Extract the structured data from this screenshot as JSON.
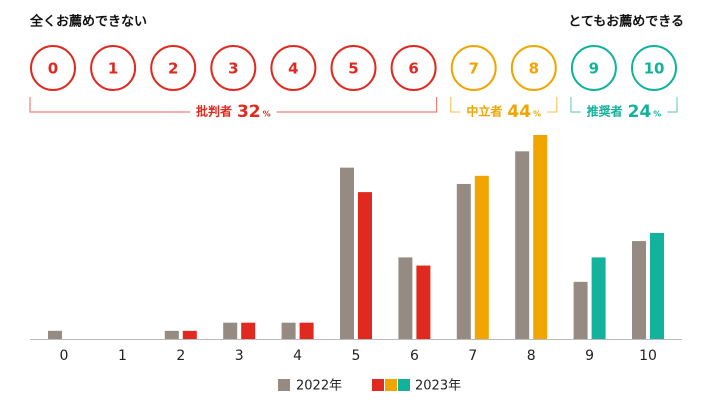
{
  "chart_data": {
    "type": "bar",
    "header_left": "全くお薦めできない",
    "header_right": "とてもお薦めできる",
    "categories": [
      "0",
      "1",
      "2",
      "3",
      "4",
      "5",
      "6",
      "7",
      "8",
      "9",
      "10"
    ],
    "series": [
      {
        "name": "2022年",
        "color": "#968b82",
        "values": [
          1,
          0,
          1,
          2,
          2,
          21,
          10,
          19,
          23,
          7,
          12
        ]
      },
      {
        "name": "2023年",
        "colors": [
          "#e0291f",
          "#e0291f",
          "#e0291f",
          "#e0291f",
          "#e0291f",
          "#e0291f",
          "#e0291f",
          "#f0a500",
          "#f0a500",
          "#13b29c",
          "#13b29c"
        ],
        "values": [
          0,
          0,
          1,
          2,
          2,
          18,
          9,
          20,
          25,
          10,
          13
        ]
      }
    ],
    "groups": [
      {
        "name": "批判者",
        "value": 32,
        "unit": "%",
        "color": "#e0291f"
      },
      {
        "name": "中立者",
        "value": 44,
        "unit": "%",
        "color": "#f0a500"
      },
      {
        "name": "推奨者",
        "value": 24,
        "unit": "%",
        "color": "#13b29c"
      }
    ],
    "ylim": [
      0,
      25
    ]
  }
}
